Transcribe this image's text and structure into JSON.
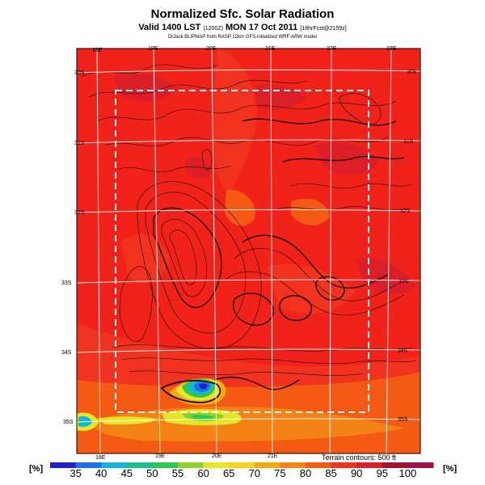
{
  "header": {
    "title": "Normalized Sfc. Solar Radiation",
    "valid_main": "Valid 1400 LST",
    "valid_code": "(1200Z)",
    "valid_date": "MON 17 Oct 2011",
    "valid_fcst": "[18hrFcst@2159z]",
    "credit": "DrJack BLIPMAP from RASP 12km GFS-initialized WRF-ARW model"
  },
  "map": {
    "lon_labels_top": [
      "18E",
      "19E",
      "20E",
      "21E",
      "22E",
      "23E"
    ],
    "lon_labels_bottom": [
      "18E",
      "19E",
      "20E",
      "21E"
    ],
    "lat_labels_left": [
      "30S",
      "31S",
      "32S",
      "33S",
      "34S",
      "35S"
    ],
    "lat_labels_right": [
      "30S",
      "31S",
      "32S",
      "33S",
      "34S",
      "35S"
    ],
    "terrain_note": "Terrain contours: 500 ft",
    "background_color": "#f0221a"
  },
  "colorbar": {
    "unit_left": "[%]",
    "unit_right": "[%]",
    "ticks": [
      "35",
      "40",
      "45",
      "50",
      "55",
      "60",
      "65",
      "70",
      "75",
      "80",
      "85",
      "90",
      "95",
      "100"
    ],
    "colors": [
      "#2020c8",
      "#1f6fe6",
      "#14b4dc",
      "#1ebe8c",
      "#2dc850",
      "#8cd228",
      "#e6e628",
      "#f5d21e",
      "#f5aa14",
      "#f58214",
      "#f55a14",
      "#f0321e",
      "#dc1e28",
      "#a0142d",
      "#a01046"
    ]
  }
}
